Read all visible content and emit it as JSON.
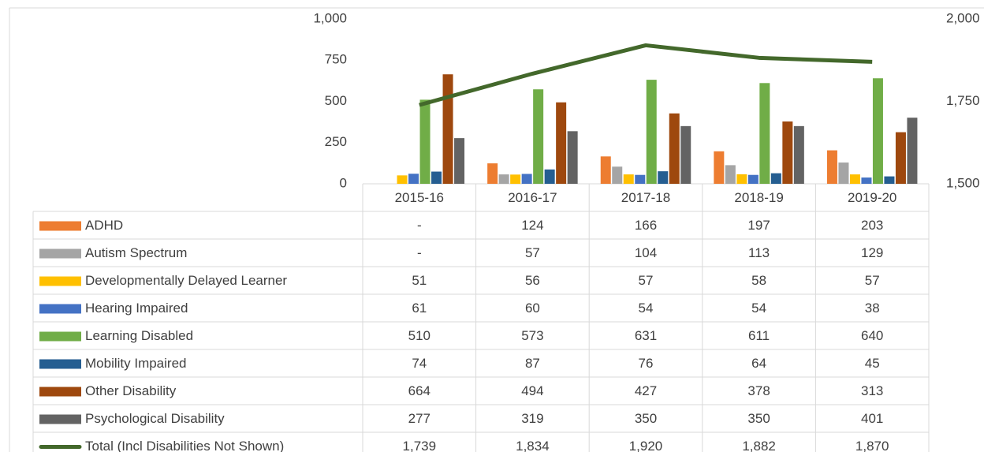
{
  "chart_data": {
    "type": "bar",
    "categories": [
      "2015-16",
      "2016-17",
      "2017-18",
      "2018-19",
      "2019-20"
    ],
    "ylim": [
      0,
      1000
    ],
    "yticks": [
      0,
      250,
      500,
      750,
      {
        "value": 1000,
        "label": "1,000"
      }
    ],
    "y2lim": [
      1500,
      2000
    ],
    "y2ticks": [
      {
        "value": 1500,
        "label": "1,500"
      },
      {
        "value": 1750,
        "label": "1,750"
      },
      {
        "value": 2000,
        "label": "2,000"
      }
    ],
    "series": [
      {
        "name": "ADHD",
        "color": "#ed7d31",
        "values": [
          null,
          124,
          166,
          197,
          203
        ],
        "value_labels": [
          "-",
          "124",
          "166",
          "197",
          "203"
        ]
      },
      {
        "name": "Autism Spectrum",
        "color": "#a5a5a5",
        "values": [
          null,
          57,
          104,
          113,
          129
        ],
        "value_labels": [
          "-",
          "57",
          "104",
          "113",
          "129"
        ]
      },
      {
        "name": "Developmentally  Delayed Learner",
        "color": "#ffc000",
        "values": [
          51,
          56,
          57,
          58,
          57
        ]
      },
      {
        "name": "Hearing Impaired",
        "color": "#4472c4",
        "values": [
          61,
          60,
          54,
          54,
          38
        ]
      },
      {
        "name": "Learning Disabled",
        "color": "#70ad47",
        "values": [
          510,
          573,
          631,
          611,
          640
        ]
      },
      {
        "name": "Mobility Impaired",
        "color": "#255e91",
        "values": [
          74,
          87,
          76,
          64,
          45
        ]
      },
      {
        "name": "Other Disability",
        "color": "#9e480e",
        "values": [
          664,
          494,
          427,
          378,
          313
        ]
      },
      {
        "name": "Psychological Disability",
        "color": "#636363",
        "values": [
          277,
          319,
          350,
          350,
          401
        ]
      },
      {
        "name": "Total (Incl Disabilities Not Shown)",
        "color": "#43682b",
        "type": "line",
        "axis": "y2",
        "values": [
          1739,
          1834,
          1920,
          1882,
          1870
        ],
        "value_labels": [
          "1,739",
          "1,834",
          "1,920",
          "1,882",
          "1,870"
        ]
      }
    ]
  }
}
